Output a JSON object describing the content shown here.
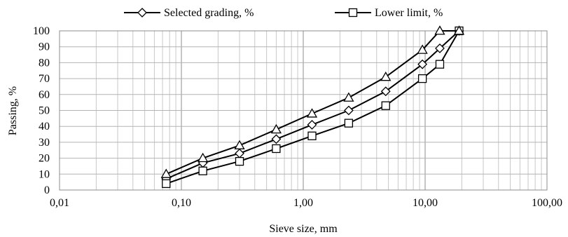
{
  "chart_data": {
    "type": "line",
    "xlabel": "Sieve size, mm",
    "ylabel": "Passing, %",
    "xscale": "log",
    "xlim": [
      0.01,
      100
    ],
    "ylim": [
      0,
      100
    ],
    "xticks": [
      0.01,
      0.1,
      1,
      10,
      100
    ],
    "xtick_labels": [
      "0,01",
      "0,10",
      "1,00",
      "10,00",
      "100,00"
    ],
    "yticks": [
      0,
      10,
      20,
      30,
      40,
      50,
      60,
      70,
      80,
      90,
      100
    ],
    "grid": true,
    "legend_position": "top",
    "series": [
      {
        "name": "Selected grading, %",
        "marker": "diamond",
        "in_legend": true,
        "x": [
          0.075,
          0.15,
          0.3,
          0.6,
          1.18,
          2.36,
          4.75,
          9.5,
          13.2,
          19
        ],
        "y": [
          7,
          17,
          23,
          32,
          41,
          50,
          62,
          79,
          89,
          100
        ]
      },
      {
        "name": "Lower limit, %",
        "marker": "square",
        "in_legend": true,
        "x": [
          0.075,
          0.15,
          0.3,
          0.6,
          1.18,
          2.36,
          4.75,
          9.5,
          13.2,
          19
        ],
        "y": [
          4,
          12,
          18,
          26,
          34,
          42,
          53,
          70,
          79,
          100
        ]
      },
      {
        "name": "",
        "marker": "triangle",
        "in_legend": false,
        "x": [
          0.075,
          0.15,
          0.3,
          0.6,
          1.18,
          2.36,
          4.75,
          9.5,
          13.2,
          19
        ],
        "y": [
          10,
          20,
          28,
          38,
          48,
          58,
          71,
          88,
          100,
          100
        ]
      }
    ]
  }
}
